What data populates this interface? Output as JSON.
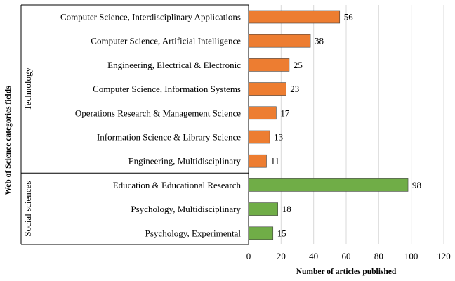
{
  "chart_data": {
    "type": "bar",
    "orientation": "horizontal",
    "title": "",
    "xlabel": "Number of articles published",
    "ylabel": "Web of Science categories fields",
    "xlim": [
      0,
      120
    ],
    "xticks": [
      0,
      20,
      40,
      60,
      80,
      100,
      120
    ],
    "grid": "vertical",
    "categories": [
      "Computer Science, Interdisciplinary Applications",
      "Computer Science, Artificial Intelligence",
      "Engineering, Electrical & Electronic",
      "Computer Science, Information Systems",
      "Operations Research & Management Science",
      "Information Science & Library Science",
      "Engineering, Multidisciplinary",
      "Education & Educational Research",
      "Psychology, Multidisciplinary",
      "Psychology, Experimental"
    ],
    "values": [
      56,
      38,
      25,
      23,
      17,
      13,
      11,
      98,
      18,
      15
    ],
    "groups": [
      {
        "name": "Technology",
        "start": 0,
        "end": 6,
        "color": "#ed7d31"
      },
      {
        "name": "Social sciences",
        "start": 7,
        "end": 9,
        "color": "#70ad47"
      }
    ]
  }
}
